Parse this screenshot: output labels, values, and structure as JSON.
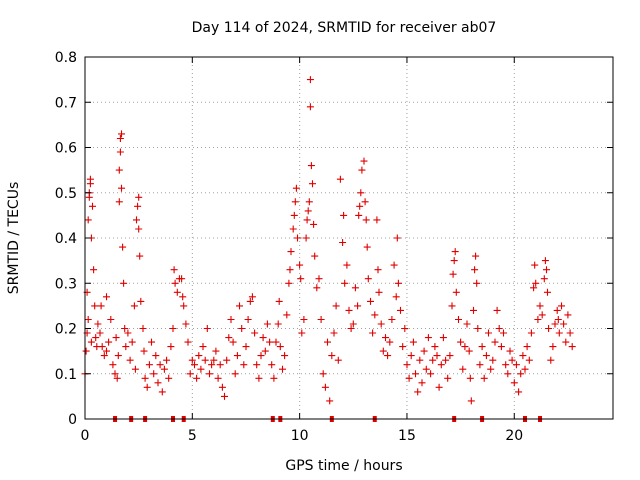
{
  "chart_data": {
    "type": "scatter",
    "title": "Day 114 of 2024, SRMTID for receiver ab07",
    "xlabel": "GPS time / hours",
    "ylabel": "SRMTID / TECUs",
    "xlim": [
      0,
      24.6
    ],
    "ylim": [
      0,
      0.8
    ],
    "x_ticks": [
      0,
      5,
      10,
      15,
      20
    ],
    "x_tick_labels": [
      "0",
      "5",
      "10",
      "15",
      "20"
    ],
    "y_ticks": [
      0,
      0.1,
      0.2,
      0.3,
      0.4,
      0.5,
      0.6,
      0.7,
      0.8
    ],
    "y_tick_labels": [
      "0",
      "0.1",
      "0.2",
      "0.3",
      "0.4",
      "0.5",
      "0.6",
      "0.7",
      "0.8"
    ],
    "grid": true,
    "marker": "plus",
    "color": "#e00000",
    "baseline_markers_x": [
      1.4,
      2.15,
      2.8,
      4.1,
      4.6,
      8.75,
      9.1,
      11.5,
      13.5,
      17.2,
      18.5,
      20.5,
      21.2
    ],
    "series": [
      {
        "name": "SRMTID",
        "points": [
          [
            0.0,
            0.1
          ],
          [
            0.05,
            0.15
          ],
          [
            0.1,
            0.19
          ],
          [
            0.1,
            0.28
          ],
          [
            0.15,
            0.22
          ],
          [
            0.15,
            0.44
          ],
          [
            0.2,
            0.49
          ],
          [
            0.2,
            0.5
          ],
          [
            0.25,
            0.52
          ],
          [
            0.25,
            0.53
          ],
          [
            0.3,
            0.4
          ],
          [
            0.3,
            0.17
          ],
          [
            0.35,
            0.47
          ],
          [
            0.4,
            0.33
          ],
          [
            0.45,
            0.25
          ],
          [
            0.5,
            0.18
          ],
          [
            0.55,
            0.16
          ],
          [
            0.6,
            0.21
          ],
          [
            0.7,
            0.19
          ],
          [
            0.75,
            0.25
          ],
          [
            0.8,
            0.16
          ],
          [
            0.9,
            0.14
          ],
          [
            1.0,
            0.15
          ],
          [
            1.0,
            0.27
          ],
          [
            1.1,
            0.17
          ],
          [
            1.2,
            0.22
          ],
          [
            1.3,
            0.12
          ],
          [
            1.4,
            0.1
          ],
          [
            1.45,
            0.18
          ],
          [
            1.5,
            0.09
          ],
          [
            1.55,
            0.14
          ],
          [
            1.6,
            0.48
          ],
          [
            1.6,
            0.55
          ],
          [
            1.65,
            0.59
          ],
          [
            1.65,
            0.62
          ],
          [
            1.7,
            0.63
          ],
          [
            1.7,
            0.51
          ],
          [
            1.75,
            0.38
          ],
          [
            1.8,
            0.3
          ],
          [
            1.85,
            0.2
          ],
          [
            1.9,
            0.16
          ],
          [
            2.0,
            0.19
          ],
          [
            2.1,
            0.13
          ],
          [
            2.2,
            0.17
          ],
          [
            2.3,
            0.25
          ],
          [
            2.35,
            0.11
          ],
          [
            2.4,
            0.44
          ],
          [
            2.45,
            0.47
          ],
          [
            2.5,
            0.49
          ],
          [
            2.5,
            0.42
          ],
          [
            2.55,
            0.36
          ],
          [
            2.6,
            0.26
          ],
          [
            2.7,
            0.2
          ],
          [
            2.75,
            0.15
          ],
          [
            2.8,
            0.09
          ],
          [
            2.9,
            0.07
          ],
          [
            3.0,
            0.12
          ],
          [
            3.1,
            0.17
          ],
          [
            3.2,
            0.1
          ],
          [
            3.3,
            0.14
          ],
          [
            3.4,
            0.08
          ],
          [
            3.5,
            0.12
          ],
          [
            3.6,
            0.06
          ],
          [
            3.7,
            0.11
          ],
          [
            3.8,
            0.13
          ],
          [
            3.9,
            0.09
          ],
          [
            4.0,
            0.16
          ],
          [
            4.1,
            0.2
          ],
          [
            4.15,
            0.33
          ],
          [
            4.2,
            0.3
          ],
          [
            4.3,
            0.28
          ],
          [
            4.4,
            0.31
          ],
          [
            4.5,
            0.31
          ],
          [
            4.55,
            0.27
          ],
          [
            4.6,
            0.25
          ],
          [
            4.7,
            0.21
          ],
          [
            4.8,
            0.17
          ],
          [
            4.9,
            0.1
          ],
          [
            5.0,
            0.13
          ],
          [
            5.1,
            0.12
          ],
          [
            5.2,
            0.09
          ],
          [
            5.3,
            0.14
          ],
          [
            5.4,
            0.11
          ],
          [
            5.5,
            0.16
          ],
          [
            5.6,
            0.13
          ],
          [
            5.7,
            0.2
          ],
          [
            5.8,
            0.1
          ],
          [
            5.9,
            0.12
          ],
          [
            6.0,
            0.13
          ],
          [
            6.1,
            0.15
          ],
          [
            6.2,
            0.09
          ],
          [
            6.3,
            0.12
          ],
          [
            6.4,
            0.07
          ],
          [
            6.5,
            0.05
          ],
          [
            6.6,
            0.13
          ],
          [
            6.7,
            0.18
          ],
          [
            6.8,
            0.22
          ],
          [
            6.9,
            0.17
          ],
          [
            7.0,
            0.1
          ],
          [
            7.1,
            0.14
          ],
          [
            7.2,
            0.25
          ],
          [
            7.3,
            0.2
          ],
          [
            7.4,
            0.12
          ],
          [
            7.5,
            0.16
          ],
          [
            7.6,
            0.22
          ],
          [
            7.7,
            0.26
          ],
          [
            7.8,
            0.27
          ],
          [
            7.9,
            0.19
          ],
          [
            8.0,
            0.12
          ],
          [
            8.1,
            0.09
          ],
          [
            8.2,
            0.14
          ],
          [
            8.3,
            0.18
          ],
          [
            8.4,
            0.15
          ],
          [
            8.5,
            0.21
          ],
          [
            8.6,
            0.17
          ],
          [
            8.7,
            0.12
          ],
          [
            8.8,
            0.09
          ],
          [
            8.9,
            0.17
          ],
          [
            9.0,
            0.21
          ],
          [
            9.05,
            0.26
          ],
          [
            9.1,
            0.16
          ],
          [
            9.2,
            0.11
          ],
          [
            9.3,
            0.14
          ],
          [
            9.4,
            0.23
          ],
          [
            9.5,
            0.3
          ],
          [
            9.55,
            0.33
          ],
          [
            9.6,
            0.37
          ],
          [
            9.7,
            0.42
          ],
          [
            9.75,
            0.45
          ],
          [
            9.8,
            0.48
          ],
          [
            9.85,
            0.51
          ],
          [
            9.9,
            0.4
          ],
          [
            10.0,
            0.34
          ],
          [
            10.05,
            0.31
          ],
          [
            10.1,
            0.19
          ],
          [
            10.2,
            0.22
          ],
          [
            10.3,
            0.4
          ],
          [
            10.35,
            0.44
          ],
          [
            10.4,
            0.46
          ],
          [
            10.45,
            0.48
          ],
          [
            10.5,
            0.75
          ],
          [
            10.5,
            0.69
          ],
          [
            10.55,
            0.56
          ],
          [
            10.6,
            0.52
          ],
          [
            10.65,
            0.43
          ],
          [
            10.7,
            0.36
          ],
          [
            10.8,
            0.29
          ],
          [
            10.9,
            0.31
          ],
          [
            11.0,
            0.22
          ],
          [
            11.1,
            0.1
          ],
          [
            11.2,
            0.07
          ],
          [
            11.3,
            0.17
          ],
          [
            11.4,
            0.04
          ],
          [
            11.5,
            0.14
          ],
          [
            11.6,
            0.19
          ],
          [
            11.7,
            0.25
          ],
          [
            11.8,
            0.13
          ],
          [
            11.9,
            0.53
          ],
          [
            12.0,
            0.39
          ],
          [
            12.05,
            0.45
          ],
          [
            12.1,
            0.3
          ],
          [
            12.2,
            0.34
          ],
          [
            12.3,
            0.24
          ],
          [
            12.4,
            0.2
          ],
          [
            12.5,
            0.21
          ],
          [
            12.6,
            0.29
          ],
          [
            12.7,
            0.25
          ],
          [
            12.75,
            0.45
          ],
          [
            12.8,
            0.47
          ],
          [
            12.85,
            0.5
          ],
          [
            12.9,
            0.55
          ],
          [
            13.0,
            0.57
          ],
          [
            13.05,
            0.48
          ],
          [
            13.1,
            0.44
          ],
          [
            13.15,
            0.38
          ],
          [
            13.2,
            0.31
          ],
          [
            13.3,
            0.26
          ],
          [
            13.4,
            0.19
          ],
          [
            13.5,
            0.23
          ],
          [
            13.6,
            0.44
          ],
          [
            13.65,
            0.33
          ],
          [
            13.7,
            0.28
          ],
          [
            13.8,
            0.21
          ],
          [
            13.9,
            0.15
          ],
          [
            14.0,
            0.18
          ],
          [
            14.1,
            0.14
          ],
          [
            14.2,
            0.17
          ],
          [
            14.3,
            0.22
          ],
          [
            14.4,
            0.34
          ],
          [
            14.5,
            0.27
          ],
          [
            14.55,
            0.4
          ],
          [
            14.6,
            0.3
          ],
          [
            14.7,
            0.24
          ],
          [
            14.8,
            0.16
          ],
          [
            14.9,
            0.2
          ],
          [
            15.0,
            0.12
          ],
          [
            15.1,
            0.09
          ],
          [
            15.2,
            0.14
          ],
          [
            15.3,
            0.17
          ],
          [
            15.4,
            0.1
          ],
          [
            15.5,
            0.06
          ],
          [
            15.6,
            0.13
          ],
          [
            15.7,
            0.08
          ],
          [
            15.8,
            0.15
          ],
          [
            15.9,
            0.11
          ],
          [
            16.0,
            0.18
          ],
          [
            16.1,
            0.1
          ],
          [
            16.2,
            0.13
          ],
          [
            16.3,
            0.16
          ],
          [
            16.4,
            0.14
          ],
          [
            16.5,
            0.07
          ],
          [
            16.6,
            0.12
          ],
          [
            16.7,
            0.18
          ],
          [
            16.8,
            0.13
          ],
          [
            16.9,
            0.09
          ],
          [
            17.0,
            0.14
          ],
          [
            17.1,
            0.25
          ],
          [
            17.15,
            0.32
          ],
          [
            17.2,
            0.35
          ],
          [
            17.25,
            0.37
          ],
          [
            17.3,
            0.28
          ],
          [
            17.4,
            0.22
          ],
          [
            17.5,
            0.17
          ],
          [
            17.6,
            0.11
          ],
          [
            17.7,
            0.16
          ],
          [
            17.8,
            0.21
          ],
          [
            17.9,
            0.15
          ],
          [
            17.95,
            0.09
          ],
          [
            18.0,
            0.04
          ],
          [
            18.1,
            0.24
          ],
          [
            18.15,
            0.33
          ],
          [
            18.2,
            0.36
          ],
          [
            18.25,
            0.3
          ],
          [
            18.3,
            0.2
          ],
          [
            18.4,
            0.12
          ],
          [
            18.5,
            0.16
          ],
          [
            18.6,
            0.09
          ],
          [
            18.7,
            0.14
          ],
          [
            18.8,
            0.19
          ],
          [
            18.9,
            0.11
          ],
          [
            19.0,
            0.13
          ],
          [
            19.1,
            0.17
          ],
          [
            19.2,
            0.24
          ],
          [
            19.3,
            0.2
          ],
          [
            19.4,
            0.16
          ],
          [
            19.5,
            0.19
          ],
          [
            19.6,
            0.12
          ],
          [
            19.7,
            0.1
          ],
          [
            19.8,
            0.15
          ],
          [
            19.9,
            0.13
          ],
          [
            20.0,
            0.08
          ],
          [
            20.1,
            0.12
          ],
          [
            20.2,
            0.06
          ],
          [
            20.3,
            0.1
          ],
          [
            20.4,
            0.14
          ],
          [
            20.5,
            0.11
          ],
          [
            20.6,
            0.16
          ],
          [
            20.7,
            0.13
          ],
          [
            20.8,
            0.19
          ],
          [
            20.9,
            0.29
          ],
          [
            20.95,
            0.34
          ],
          [
            21.0,
            0.3
          ],
          [
            21.1,
            0.22
          ],
          [
            21.2,
            0.25
          ],
          [
            21.3,
            0.23
          ],
          [
            21.4,
            0.31
          ],
          [
            21.45,
            0.35
          ],
          [
            21.5,
            0.33
          ],
          [
            21.55,
            0.28
          ],
          [
            21.6,
            0.2
          ],
          [
            21.7,
            0.13
          ],
          [
            21.8,
            0.16
          ],
          [
            21.9,
            0.21
          ],
          [
            22.0,
            0.24
          ],
          [
            22.05,
            0.22
          ],
          [
            22.1,
            0.19
          ],
          [
            22.2,
            0.25
          ],
          [
            22.3,
            0.21
          ],
          [
            22.4,
            0.17
          ],
          [
            22.5,
            0.23
          ],
          [
            22.6,
            0.19
          ],
          [
            22.7,
            0.16
          ]
        ]
      }
    ]
  }
}
